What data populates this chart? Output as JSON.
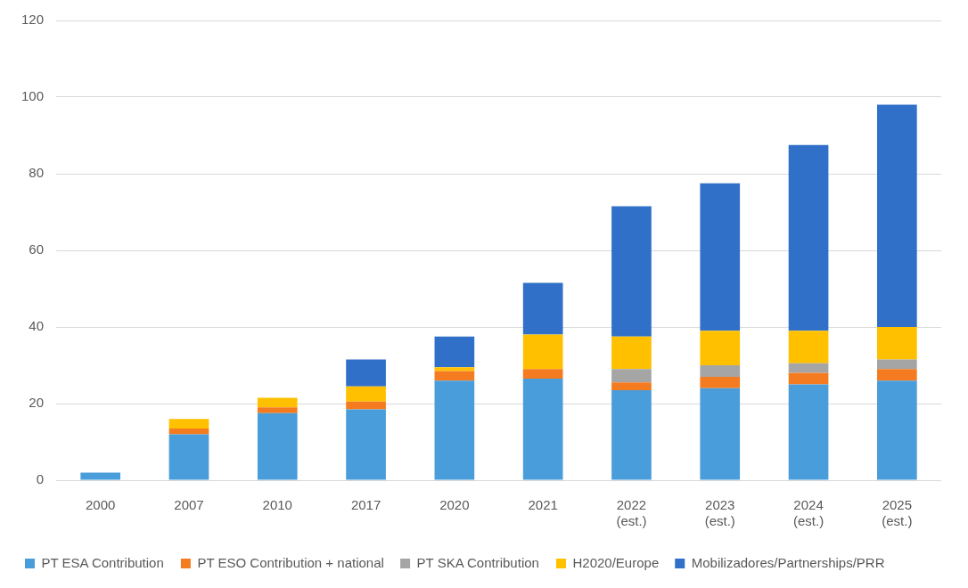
{
  "chart_data": {
    "type": "bar",
    "stacked": true,
    "categories": [
      "2000",
      "2007",
      "2010",
      "2017",
      "2020",
      "2021",
      "2022 (est.)",
      "2023 (est.)",
      "2024 (est.)",
      "2025 (est.)"
    ],
    "series": [
      {
        "name": "PT ESA Contribution",
        "color": "#4a9ddb",
        "values": [
          2,
          12,
          17.5,
          18.5,
          26,
          26.5,
          23.5,
          24,
          25,
          26
        ]
      },
      {
        "name": "PT ESO Contribution + national",
        "color": "#f47b20",
        "values": [
          0,
          1.5,
          1.5,
          2,
          2.5,
          2.5,
          2,
          3,
          3,
          3
        ]
      },
      {
        "name": "PT SKA Contribution",
        "color": "#a5a5a5",
        "values": [
          0,
          0,
          0,
          0,
          0,
          0,
          3.5,
          3,
          2.5,
          2.5
        ]
      },
      {
        "name": "H2020/Europe",
        "color": "#ffc000",
        "values": [
          0,
          2.5,
          2.5,
          4,
          1,
          9,
          8.5,
          9,
          8.5,
          8.5
        ]
      },
      {
        "name": "Mobilizadores/Partnerships/PRR",
        "color": "#3070c8",
        "values": [
          0,
          0,
          0,
          7,
          8,
          13.5,
          34,
          38.5,
          48.5,
          58
        ]
      }
    ],
    "ylim": [
      0,
      120
    ],
    "yticks": [
      0,
      20,
      40,
      60,
      80,
      100,
      120
    ],
    "grid": "y",
    "legend": "bottom"
  }
}
